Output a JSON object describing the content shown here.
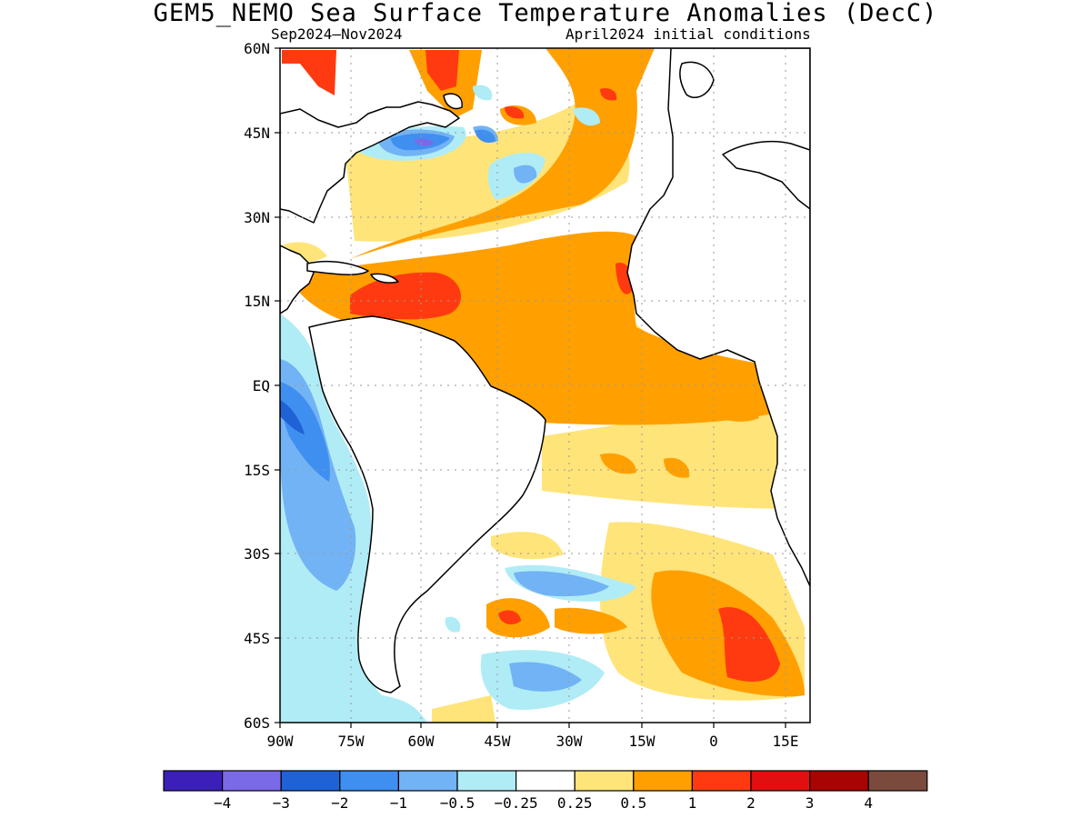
{
  "title": "GEM5_NEMO Sea Surface Temperature Anomalies (DecC)",
  "subtitle_left": "Sep2024–Nov2024",
  "subtitle_right": "April2024 initial conditions",
  "lat_labels": [
    "60N",
    "45N",
    "30N",
    "15N",
    "EQ",
    "15S",
    "30S",
    "45S",
    "60S"
  ],
  "lon_labels": [
    "90W",
    "75W",
    "60W",
    "45W",
    "30W",
    "15W",
    "0",
    "15E"
  ],
  "colorbar": {
    "colors": [
      "#3c1fb8",
      "#7b6ae8",
      "#1f62d6",
      "#3f8ff0",
      "#72b3f5",
      "#b0ecf6",
      "#ffffff",
      "#ffe47a",
      "#ffa000",
      "#ff3a10",
      "#e01010",
      "#a80404",
      "#7a4a3c"
    ],
    "labels": [
      "−4",
      "−3",
      "−2",
      "−1",
      "−0.5",
      "−0.25",
      "0.25",
      "0.5",
      "1",
      "2",
      "3",
      "4"
    ]
  }
}
